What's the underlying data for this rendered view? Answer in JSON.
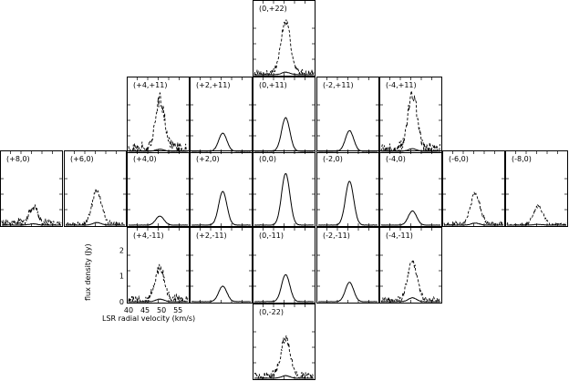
{
  "chart_data": {
    "type": "line",
    "xlabel": "LSR radial velocity (km/s)",
    "ylabel": "flux density (Jy)",
    "xlim": [
      40,
      58
    ],
    "ylim": [
      0,
      2.4
    ],
    "x_ticks": [
      "40",
      "45",
      "50",
      "55"
    ],
    "y_ticks": [
      "0",
      "1",
      "2"
    ],
    "series_styles": {
      "main": "solid",
      "scaled": "dashed"
    },
    "panels": [
      {
        "label": "(0,+22)",
        "row": 0,
        "col": 4,
        "peak": 0.1,
        "scaled_peak": 2.0,
        "noise": 0.35
      },
      {
        "label": "(+4,+11)",
        "row": 1,
        "col": 2,
        "peak": 0.08,
        "scaled_peak": 1.9,
        "noise": 0.55
      },
      {
        "label": "(+2,+11)",
        "row": 1,
        "col": 3,
        "peak": 0.7
      },
      {
        "label": "(0,+11)",
        "row": 1,
        "col": 4,
        "peak": 1.3
      },
      {
        "label": "(-2,+11)",
        "row": 1,
        "col": 5,
        "peak": 0.8
      },
      {
        "label": "(-4,+11)",
        "row": 1,
        "col": 6,
        "peak": 0.1,
        "scaled_peak": 2.1,
        "noise": 0.55
      },
      {
        "label": "(+8,0)",
        "row": 2,
        "col": 0,
        "peak": 0.05,
        "scaled_peak": 0.6,
        "noise": 0.4
      },
      {
        "label": "(+6,0)",
        "row": 2,
        "col": 1,
        "peak": 0.1,
        "scaled_peak": 1.3,
        "noise": 0.25
      },
      {
        "label": "(+4,0)",
        "row": 2,
        "col": 2,
        "peak": 0.35
      },
      {
        "label": "(+2,0)",
        "row": 2,
        "col": 3,
        "peak": 1.3
      },
      {
        "label": "(0,0)",
        "row": 2,
        "col": 4,
        "peak": 2.0
      },
      {
        "label": "(-2,0)",
        "row": 2,
        "col": 5,
        "peak": 1.7
      },
      {
        "label": "(-4,0)",
        "row": 2,
        "col": 6,
        "peak": 0.55
      },
      {
        "label": "(-6,0)",
        "row": 2,
        "col": 7,
        "peak": 0.08,
        "scaled_peak": 1.2,
        "noise": 0.25
      },
      {
        "label": "(-8,0)",
        "row": 2,
        "col": 8,
        "peak": 0.03,
        "scaled_peak": 0.7,
        "noise": 0.15
      },
      {
        "label": "(+4,-11)",
        "row": 3,
        "col": 2,
        "peak": 0.1,
        "scaled_peak": 1.2,
        "noise": 0.45
      },
      {
        "label": "(+2,-11)",
        "row": 3,
        "col": 3,
        "peak": 0.6
      },
      {
        "label": "(0,-11)",
        "row": 3,
        "col": 4,
        "peak": 1.05
      },
      {
        "label": "(-2,-11)",
        "row": 3,
        "col": 5,
        "peak": 0.75
      },
      {
        "label": "(-4,-11)",
        "row": 3,
        "col": 6,
        "peak": 0.15,
        "scaled_peak": 1.5,
        "noise": 0.3
      },
      {
        "label": "(0,-22)",
        "row": 4,
        "col": 4,
        "peak": 0.1,
        "scaled_peak": 1.5,
        "noise": 0.4
      }
    ]
  }
}
